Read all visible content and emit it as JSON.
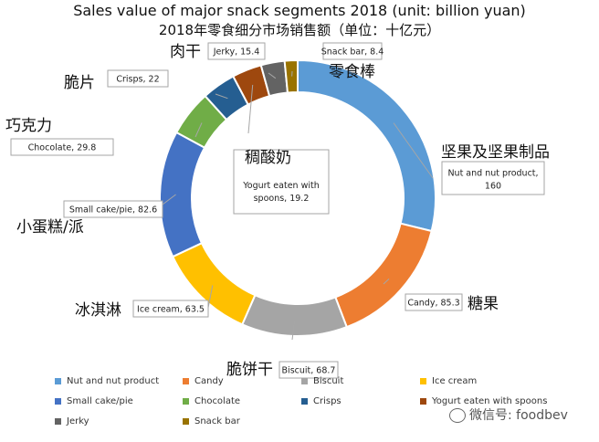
{
  "chart_data": {
    "type": "pie",
    "title": "Sales value of major snack segments 2018 (unit: billion yuan)",
    "subtitle": "2018年零食细分市场销售额（单位：十亿元）",
    "series": [
      {
        "name": "Nut and nut product",
        "cn": "坚果及坚果制品",
        "value": 160,
        "label": "Nut and nut product,\n160",
        "color": "#5b9bd5"
      },
      {
        "name": "Candy",
        "cn": "糖果",
        "value": 85.3,
        "label": "Candy, 85.3",
        "color": "#ed7d31"
      },
      {
        "name": "Biscuit",
        "cn": "脆饼干",
        "value": 68.7,
        "label": "Biscuit, 68.7",
        "color": "#a5a5a5"
      },
      {
        "name": "Ice cream",
        "cn": "冰淇淋",
        "value": 63.5,
        "label": "Ice cream, 63.5",
        "color": "#ffc000"
      },
      {
        "name": "Small cake/pie",
        "cn": "小蛋糕/派",
        "value": 82.6,
        "label": "Small cake/pie, 82.6",
        "color": "#4472c4"
      },
      {
        "name": "Chocolate",
        "cn": "巧克力",
        "value": 29.8,
        "label": "Chocolate, 29.8",
        "color": "#70ad47"
      },
      {
        "name": "Crisps",
        "cn": "脆片",
        "value": 22,
        "label": "Crisps, 22",
        "color": "#255e91"
      },
      {
        "name": "Yogurt eaten with spoons",
        "cn": "稠酸奶",
        "value": 19.2,
        "label": "Yogurt eaten with\nspoons, 19.2",
        "color": "#9e480e"
      },
      {
        "name": "Jerky",
        "cn": "肉干",
        "value": 15.4,
        "label": "Jerky, 15.4",
        "color": "#636363"
      },
      {
        "name": "Snack bar",
        "cn": "零食棒",
        "value": 8.4,
        "label": "Snack bar, 8.4",
        "color": "#997300"
      }
    ],
    "legend_position": "bottom"
  },
  "watermark": "微信号: foodbev"
}
